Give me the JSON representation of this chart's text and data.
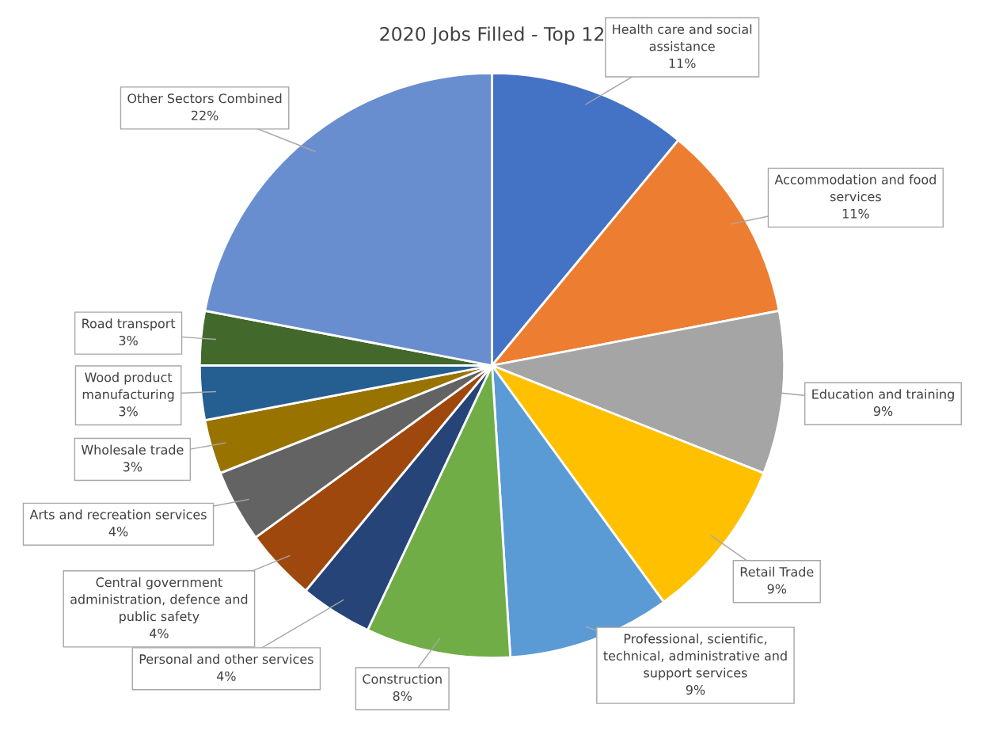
{
  "chart_data": {
    "type": "pie",
    "title": "2020 Jobs Filled - Top 12",
    "legend": false,
    "data_labels": true,
    "categories": [
      "Health care and social assistance",
      "Accommodation and food services",
      "Education and training",
      "Retail Trade",
      "Professional, scientific, technical, administrative and support services",
      "Construction",
      "Personal and other services",
      "Central government administration, defence and public safety",
      "Arts and recreation services",
      "Wholesale trade",
      "Wood product manufacturing",
      "Road transport",
      "Other Sectors Combined"
    ],
    "values": [
      11,
      11,
      9,
      9,
      9,
      8,
      4,
      4,
      4,
      3,
      3,
      3,
      22
    ],
    "value_labels": [
      "11%",
      "11%",
      "9%",
      "9%",
      "9%",
      "8%",
      "4%",
      "4%",
      "4%",
      "3%",
      "3%",
      "3%",
      "22%"
    ],
    "colors": [
      "#4472c4",
      "#ed7d31",
      "#a5a5a5",
      "#ffc000",
      "#5b9bd5",
      "#70ad47",
      "#264478",
      "#9e480e",
      "#636363",
      "#997300",
      "#255e91",
      "#43682b",
      "#698ed0"
    ]
  }
}
